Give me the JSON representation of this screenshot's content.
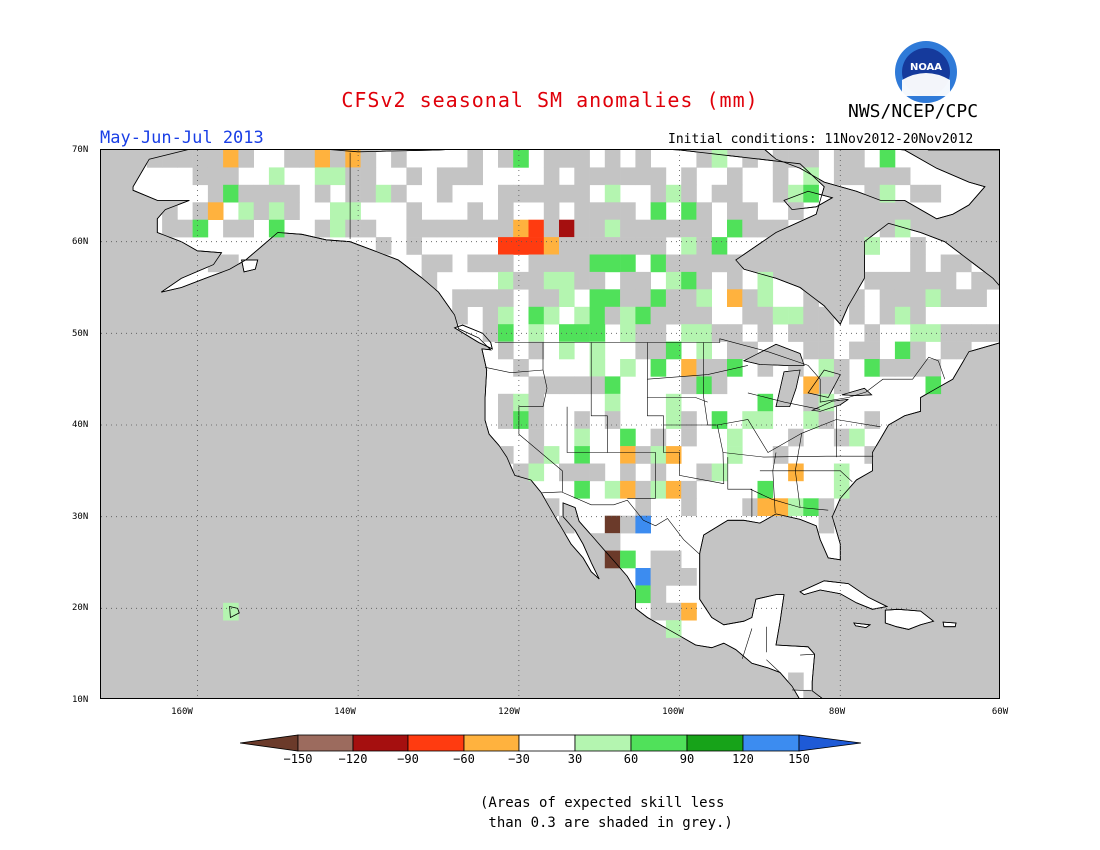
{
  "title": "CFSv2 seasonal SM anomalies (mm)",
  "agency": "NWS/NCEP/CPC",
  "logo": {
    "icon": "noaa-logo-icon",
    "text": "NOAA"
  },
  "season": "May-Jun-Jul 2013",
  "initial_conditions": "Initial conditions: 11Nov2012-20Nov2012",
  "lat_labels": [
    "70N",
    "60N",
    "50N",
    "40N",
    "30N",
    "20N",
    "10N"
  ],
  "lon_labels": [
    "160W",
    "140W",
    "120W",
    "100W",
    "80W",
    "60W"
  ],
  "colorbar": {
    "labels": [
      "-150",
      "-120",
      "-90",
      "-60",
      "-30",
      "30",
      "60",
      "90",
      "120",
      "150"
    ],
    "colors": [
      "#6b3a2a",
      "#9c6b5e",
      "#a50f0f",
      "#ff3b10",
      "#ffb23e",
      "#ffffff",
      "#b4f5b0",
      "#50e15a",
      "#17a319",
      "#3c8cf0",
      "#1e5ad6"
    ]
  },
  "note": [
    "(Areas of expected skill less",
    " than 0.3 are shaded in grey.)"
  ],
  "colors": {
    "mask": "#c4c4c4",
    "ocean": "#c4c4c4",
    "title": "#e0000a",
    "season": "#1a3fe6"
  }
}
